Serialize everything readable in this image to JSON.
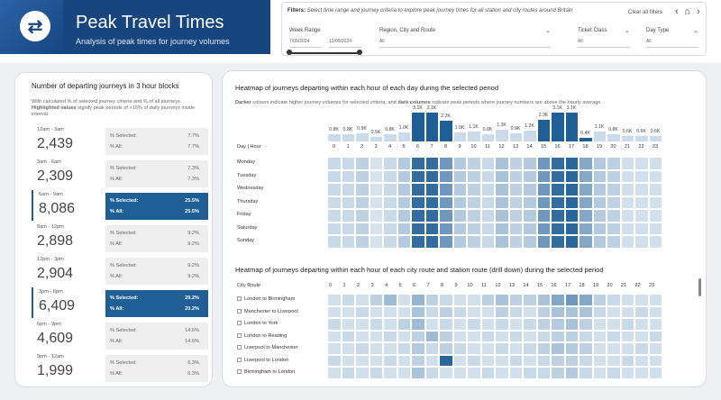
{
  "header": {
    "title": "Peak Travel Times",
    "subtitle": "Analysis of peak times for journey volumes"
  },
  "filters": {
    "label": "Filters:",
    "description": "Select time range and journey criteria to explore peak journey times for all station and city routes around Britain",
    "clear_label": "Clear all filters",
    "week_range": {
      "label": "Week Range",
      "start": "7/05/2024",
      "end": "12/05/2024"
    },
    "region": {
      "label": "Region, City and Route",
      "value": "All"
    },
    "ticket_class": {
      "label": "Ticket Class",
      "value": "All"
    },
    "day_type": {
      "label": "Day Type",
      "value": "All"
    }
  },
  "blocks_panel": {
    "title": "Number of departing journeys in 3 hour blocks",
    "desc_line1": "With calculated % of selected journey criteria and % of all journeys.",
    "desc_bold": "Highlighted values",
    "desc_line2": " signify peak periods of >15% of daily journeys inside interval",
    "selected_label": "% Selected:",
    "all_label": "% All:",
    "blocks": [
      {
        "range": "12am - 3am",
        "count": "2,439",
        "selected": "7.7%",
        "all": "7.7%",
        "highlight": false
      },
      {
        "range": "3am - 6am",
        "count": "2,309",
        "selected": "7.3%",
        "all": "7.3%",
        "highlight": false
      },
      {
        "range": "6am - 9am",
        "count": "8,086",
        "selected": "25.5%",
        "all": "25.5%",
        "highlight": true
      },
      {
        "range": "9am - 12pm",
        "count": "2,898",
        "selected": "9.2%",
        "all": "9.2%",
        "highlight": false
      },
      {
        "range": "12pm - 3pm",
        "count": "2,904",
        "selected": "9.2%",
        "all": "9.2%",
        "highlight": false
      },
      {
        "range": "3pm - 6pm",
        "count": "6,409",
        "selected": "20.2%",
        "all": "20.2%",
        "highlight": true
      },
      {
        "range": "6pm - 9pm",
        "count": "4,609",
        "selected": "14.6%",
        "all": "14.6%",
        "highlight": false
      },
      {
        "range": "9pm - 12am",
        "count": "1,999",
        "selected": "6.3%",
        "all": "6.3%",
        "highlight": false
      }
    ]
  },
  "heatmap_day": {
    "title": "Heatmap of journeys departing within each hour of each day during the selected period",
    "desc_darker": "Darker",
    "desc_mid": " colours indicate higher journey volumes for selected criteria, and ",
    "desc_dark_cols": "dark columns",
    "desc_end": " indicate peak periods where journey numbers are above the hourly average.",
    "corner_label": "Day | Hour",
    "hours": [
      "0",
      "1",
      "2",
      "3",
      "4",
      "5",
      "6",
      "7",
      "8",
      "9",
      "10",
      "11",
      "12",
      "13",
      "14",
      "15",
      "16",
      "17",
      "18",
      "19",
      "20",
      "21",
      "22",
      "23"
    ],
    "hour_volumes": [
      "0.8K",
      "0.8K",
      "0.9K",
      "0.5K",
      "0.8K",
      "1.0K",
      "3.1K",
      "3.1K",
      "2.2K",
      "1.0K",
      "1.1K",
      "0.8K",
      "1.3K",
      "0.9K",
      "1.2K",
      "2.3K",
      "3.1K",
      "3.1K",
      "0.4K",
      "1.1K",
      "0.8K",
      "0.6K",
      "0.6K",
      "0.6K"
    ],
    "volume_values": [
      0.8,
      0.8,
      0.9,
      0.5,
      0.8,
      1.0,
      3.1,
      3.1,
      2.2,
      1.0,
      1.1,
      0.8,
      1.3,
      0.9,
      1.2,
      2.3,
      3.1,
      3.1,
      0.4,
      1.1,
      0.8,
      0.6,
      0.6,
      0.6
    ],
    "peak_hours": [
      6,
      7,
      8,
      15,
      16,
      17,
      18
    ],
    "days": [
      "Monday",
      "Tuesday",
      "Wednesday",
      "Thursday",
      "Friday",
      "Saturday",
      "Sunday"
    ],
    "intensity": [
      [
        0.15,
        0.15,
        0.2,
        0.08,
        0.15,
        0.25,
        0.9,
        0.9,
        0.6,
        0.25,
        0.2,
        0.15,
        0.3,
        0.2,
        0.25,
        0.6,
        0.9,
        0.95,
        0.5,
        0.25,
        0.2,
        0.1,
        0.1,
        0.1
      ],
      [
        0.15,
        0.15,
        0.2,
        0.08,
        0.15,
        0.25,
        0.9,
        0.9,
        0.6,
        0.25,
        0.2,
        0.15,
        0.3,
        0.2,
        0.25,
        0.6,
        0.9,
        0.95,
        0.5,
        0.25,
        0.2,
        0.1,
        0.1,
        0.1
      ],
      [
        0.15,
        0.15,
        0.2,
        0.08,
        0.15,
        0.25,
        0.9,
        0.9,
        0.6,
        0.25,
        0.2,
        0.15,
        0.3,
        0.2,
        0.25,
        0.6,
        0.9,
        0.95,
        0.5,
        0.25,
        0.2,
        0.1,
        0.1,
        0.1
      ],
      [
        0.15,
        0.15,
        0.2,
        0.08,
        0.15,
        0.25,
        0.9,
        0.9,
        0.6,
        0.25,
        0.2,
        0.15,
        0.3,
        0.2,
        0.25,
        0.6,
        0.9,
        0.95,
        0.5,
        0.25,
        0.2,
        0.1,
        0.1,
        0.1
      ],
      [
        0.15,
        0.15,
        0.2,
        0.08,
        0.15,
        0.25,
        0.9,
        0.9,
        0.6,
        0.25,
        0.2,
        0.15,
        0.3,
        0.2,
        0.25,
        0.6,
        0.9,
        0.95,
        0.5,
        0.25,
        0.2,
        0.1,
        0.1,
        0.1
      ],
      [
        0.15,
        0.15,
        0.2,
        0.08,
        0.15,
        0.25,
        0.9,
        0.9,
        0.6,
        0.25,
        0.2,
        0.15,
        0.3,
        0.2,
        0.25,
        0.6,
        0.9,
        0.95,
        0.5,
        0.25,
        0.2,
        0.1,
        0.1,
        0.1
      ],
      [
        0.15,
        0.15,
        0.2,
        0.08,
        0.15,
        0.25,
        0.9,
        0.9,
        0.6,
        0.25,
        0.2,
        0.15,
        0.3,
        0.2,
        0.25,
        0.6,
        0.9,
        0.95,
        0.5,
        0.25,
        0.2,
        0.1,
        0.1,
        0.1
      ]
    ]
  },
  "heatmap_route": {
    "title": "Heatmap of journeys departing within each hour of each city route and station route (drill down) during the selected period",
    "corner_label": "City Route",
    "routes": [
      "London to Birmingham",
      "Manchester to Liverpool",
      "London to York",
      "London to Reading",
      "Liverpool to Manchester",
      "Liverpool to London",
      "Birmingham to London"
    ],
    "intensity": [
      [
        0.1,
        0.15,
        0.1,
        0.2,
        0.35,
        0.1,
        0.4,
        0.2,
        0.15,
        0.1,
        0.1,
        0.2,
        0.3,
        0.2,
        0.2,
        0.3,
        0.5,
        0.6,
        0.5,
        0.2,
        0.15,
        0.1,
        0.1,
        0.1
      ],
      [
        0.1,
        0.1,
        0.15,
        0.1,
        0.1,
        0.1,
        0.3,
        0.15,
        0.2,
        0.15,
        0.1,
        0.1,
        0.2,
        0.15,
        0.1,
        0.2,
        0.3,
        0.3,
        0.3,
        0.15,
        0.1,
        0.1,
        0.15,
        0.1
      ],
      [
        0.15,
        0.1,
        0.1,
        0.15,
        0.1,
        0.2,
        0.35,
        0.1,
        0.15,
        0.1,
        0.15,
        0.1,
        0.15,
        0.1,
        0.15,
        0.2,
        0.25,
        0.3,
        0.2,
        0.1,
        0.1,
        0.15,
        0.1,
        0.1
      ],
      [
        0.1,
        0.15,
        0.1,
        0.1,
        0.15,
        0.1,
        0.2,
        0.35,
        0.2,
        0.1,
        0.1,
        0.15,
        0.1,
        0.15,
        0.1,
        0.15,
        0.2,
        0.2,
        0.15,
        0.1,
        0.15,
        0.1,
        0.1,
        0.15
      ],
      [
        0.1,
        0.1,
        0.15,
        0.1,
        0.1,
        0.15,
        0.25,
        0.15,
        0.2,
        0.15,
        0.1,
        0.1,
        0.15,
        0.1,
        0.15,
        0.2,
        0.3,
        0.25,
        0.2,
        0.1,
        0.1,
        0.1,
        0.15,
        0.1
      ],
      [
        0.15,
        0.1,
        0.1,
        0.1,
        0.15,
        0.1,
        0.2,
        0.1,
        0.95,
        0.1,
        0.15,
        0.1,
        0.1,
        0.15,
        0.1,
        0.15,
        0.2,
        0.2,
        0.15,
        0.1,
        0.1,
        0.15,
        0.1,
        0.1
      ],
      [
        0.1,
        0.15,
        0.1,
        0.15,
        0.1,
        0.1,
        0.3,
        0.15,
        0.1,
        0.1,
        0.1,
        0.15,
        0.1,
        0.1,
        0.15,
        0.15,
        0.2,
        0.25,
        0.15,
        0.1,
        0.15,
        0.1,
        0.1,
        0.1
      ]
    ]
  },
  "colors": {
    "brand": "#17467f",
    "peak": "#1f5f95",
    "cell_low": "#e6eef6",
    "cell_high": "#1f5f95"
  }
}
